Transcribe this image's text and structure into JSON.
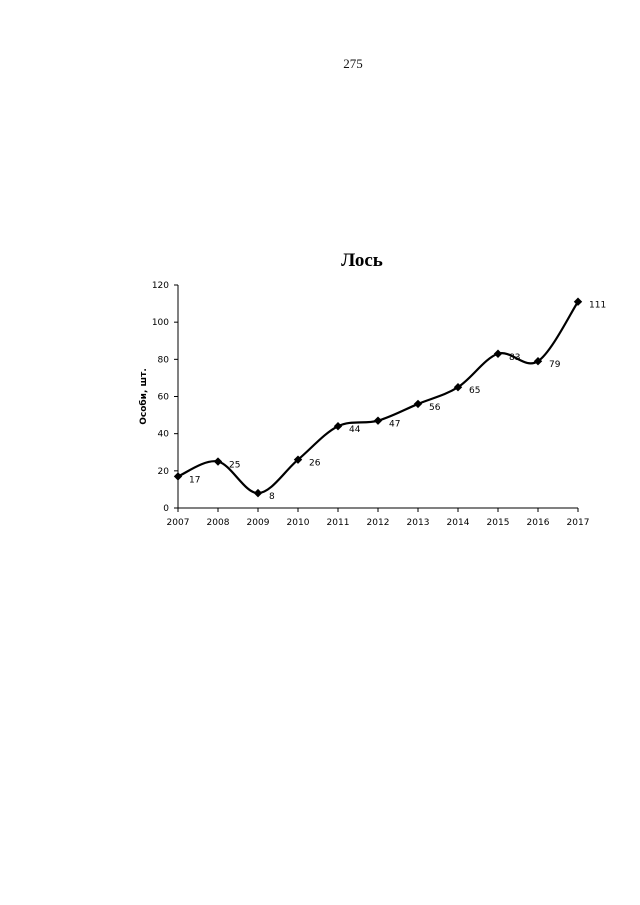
{
  "page": {
    "number": "275"
  },
  "chart_data": {
    "type": "line",
    "title": "Лось",
    "xlabel": "",
    "ylabel": "Особи, шт.",
    "x": [
      "2007",
      "2008",
      "2009",
      "2010",
      "2011",
      "2012",
      "2013",
      "2014",
      "2015",
      "2016",
      "2017"
    ],
    "series": [
      {
        "values": [
          17,
          25,
          8,
          26,
          44,
          47,
          56,
          65,
          83,
          79,
          111
        ]
      }
    ],
    "ylim": [
      0,
      120
    ],
    "yticks": [
      0,
      20,
      40,
      60,
      80,
      100,
      120
    ],
    "grid": false,
    "legend": "none",
    "smooth": true,
    "marker": "diamond",
    "line_color": "#000000"
  }
}
